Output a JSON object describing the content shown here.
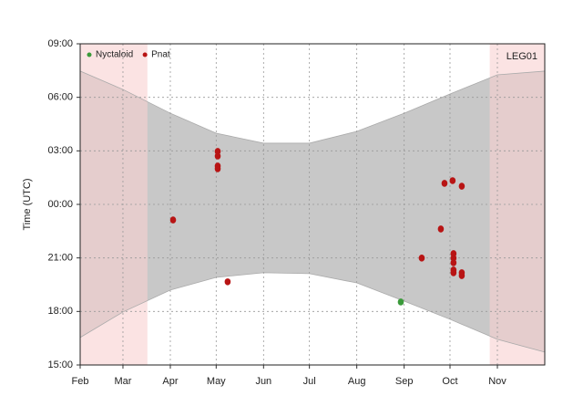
{
  "chart_data": {
    "type": "scatter",
    "ylabel": "Time (UTC)",
    "site_label": "LEG01",
    "xlim": [
      32,
      336
    ],
    "xticks": [
      {
        "value": 32,
        "label": "Feb"
      },
      {
        "value": 60,
        "label": "Mar"
      },
      {
        "value": 91,
        "label": "Apr"
      },
      {
        "value": 121,
        "label": "May"
      },
      {
        "value": 152,
        "label": "Jun"
      },
      {
        "value": 182,
        "label": "Jul"
      },
      {
        "value": 213,
        "label": "Aug"
      },
      {
        "value": 244,
        "label": "Sep"
      },
      {
        "value": 274,
        "label": "Oct"
      },
      {
        "value": 305,
        "label": "Nov"
      }
    ],
    "ylim": [
      15,
      33
    ],
    "yticks": [
      {
        "value": 15,
        "label": "15:00"
      },
      {
        "value": 18,
        "label": "18:00"
      },
      {
        "value": 21,
        "label": "21:00"
      },
      {
        "value": 24,
        "label": "00:00"
      },
      {
        "value": 27,
        "label": "03:00"
      },
      {
        "value": 30,
        "label": "06:00"
      },
      {
        "value": 33,
        "label": "09:00"
      }
    ],
    "grid": true,
    "legend": "top-left",
    "night": {
      "color": "#c8c8c8",
      "x": [
        32,
        60,
        91,
        121,
        152,
        182,
        213,
        244,
        274,
        305,
        336
      ],
      "sunrise": [
        31.47,
        30.44,
        29.11,
        27.99,
        27.43,
        27.43,
        28.09,
        29.11,
        30.19,
        31.26,
        31.47
      ],
      "sunset": [
        16.54,
        17.97,
        19.2,
        19.91,
        20.17,
        20.12,
        19.6,
        18.58,
        17.56,
        16.44,
        15.72
      ]
    },
    "no_recording": {
      "color": "#f9d0d0",
      "ranges": [
        [
          32,
          76
        ],
        [
          300,
          336
        ]
      ]
    },
    "series": [
      {
        "name": "Nyctaloid",
        "color": "#3a9a3a",
        "x": [
          241.8
        ],
        "values": [
          18.53
        ]
      },
      {
        "name": "Pnat",
        "color": "#b81414",
        "x": [
          92.8,
          122,
          122,
          122,
          122,
          128.5,
          255.5,
          268,
          270.4,
          275.7,
          281.7,
          276.3,
          276.3,
          276.3,
          276.3,
          276.3,
          281.7,
          281.7
        ],
        "values": [
          23.13,
          26.97,
          26.71,
          26.15,
          26.0,
          19.66,
          20.99,
          22.62,
          25.18,
          25.33,
          25.02,
          21.24,
          20.99,
          20.73,
          20.32,
          20.17,
          20.17,
          20.01
        ]
      }
    ]
  }
}
